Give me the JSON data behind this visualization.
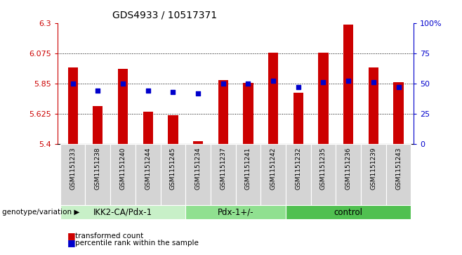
{
  "title": "GDS4933 / 10517371",
  "samples": [
    "GSM1151233",
    "GSM1151238",
    "GSM1151240",
    "GSM1151244",
    "GSM1151245",
    "GSM1151234",
    "GSM1151237",
    "GSM1151241",
    "GSM1151242",
    "GSM1151232",
    "GSM1151235",
    "GSM1151236",
    "GSM1151239",
    "GSM1151243"
  ],
  "red_values": [
    5.97,
    5.68,
    5.96,
    5.64,
    5.615,
    5.42,
    5.875,
    5.855,
    6.08,
    5.78,
    6.08,
    6.29,
    5.97,
    5.86
  ],
  "blue_values": [
    50,
    44,
    50,
    44,
    43,
    42,
    50,
    50,
    52,
    47,
    51,
    52,
    51,
    47
  ],
  "ylim_left": [
    5.4,
    6.3
  ],
  "ylim_right": [
    0,
    100
  ],
  "yticks_left": [
    5.4,
    5.625,
    5.85,
    6.075,
    6.3
  ],
  "yticks_right": [
    0,
    25,
    50,
    75,
    100
  ],
  "grid_lines": [
    5.625,
    5.85,
    6.075
  ],
  "groups": [
    {
      "label": "IKK2-CA/Pdx-1",
      "start": 0,
      "end": 4,
      "color": "#c8f0c8"
    },
    {
      "label": "Pdx-1+/-",
      "start": 5,
      "end": 8,
      "color": "#90e090"
    },
    {
      "label": "control",
      "start": 9,
      "end": 13,
      "color": "#50c050"
    }
  ],
  "bar_color": "#cc0000",
  "dot_color": "#0000cc",
  "bar_width": 0.4,
  "ylabel_right_color": "#0000cc",
  "ylabel_left_color": "#cc0000",
  "tick_bg_color": "#d4d4d4",
  "legend_items": [
    "transformed count",
    "percentile rank within the sample"
  ]
}
